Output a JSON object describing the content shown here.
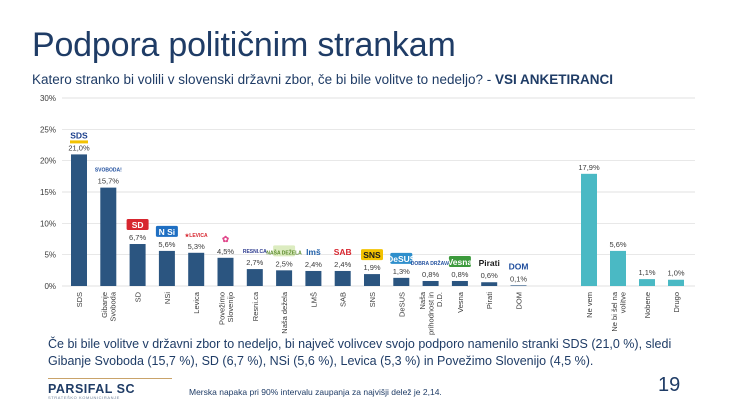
{
  "header": {
    "title": "Podpora političnim strankam",
    "subtitle_main": "Katero stranko bi volili v slovenski državni zbor, če bi bile volitve to nedeljo? - ",
    "subtitle_bold": "VSI ANKETIRANCI"
  },
  "chart_data": {
    "type": "bar",
    "ylim": [
      0,
      30
    ],
    "yticks": [
      0,
      5,
      10,
      15,
      20,
      25,
      30
    ],
    "ytick_labels": [
      "0%",
      "5%",
      "10%",
      "15%",
      "20%",
      "25%",
      "30%"
    ],
    "grid": true,
    "categories": [
      "SDS",
      "Gibanje Svoboda",
      "SD",
      "NSi",
      "Levica",
      "Povežimo Slovenijo",
      "Resni.ca",
      "Naša dežela",
      "LMŠ",
      "SAB",
      "SNS",
      "DeSUS",
      "Naša prihodnost in D.D.",
      "Vesna",
      "Pirati",
      "DOM",
      "Ne vem",
      "Ne bi šel na volitve",
      "Nobene",
      "Drugo"
    ],
    "values": [
      21.0,
      15.7,
      6.7,
      5.6,
      5.3,
      4.5,
      2.7,
      2.5,
      2.4,
      2.4,
      1.9,
      1.3,
      0.8,
      0.8,
      0.6,
      0.1,
      17.9,
      5.6,
      1.1,
      1.0
    ],
    "value_labels": [
      "21,0%",
      "15,7%",
      "6,7%",
      "5,6%",
      "5,3%",
      "4,5%",
      "2,7%",
      "2,5%",
      "2,4%",
      "2,4%",
      "1,9%",
      "1,3%",
      "0,8%",
      "0,8%",
      "0,6%",
      "0,1%",
      "17,9%",
      "5,6%",
      "1,1%",
      "1,0%"
    ],
    "tick_labels": [
      [
        "SDS"
      ],
      [
        "Gibanje",
        "Svoboda"
      ],
      [
        "SD"
      ],
      [
        "NSi"
      ],
      [
        "Levica"
      ],
      [
        "Povežimo",
        "Slovenijo"
      ],
      [
        "Resni.ca"
      ],
      [
        "Naša dežela"
      ],
      [
        "LMŠ"
      ],
      [
        "SAB"
      ],
      [
        "SNS"
      ],
      [
        "DeSUS"
      ],
      [
        "Naša",
        "prihodnost in",
        "D.D."
      ],
      [
        "Vesna"
      ],
      [
        "Pirati"
      ],
      [
        "DOM"
      ],
      [
        "Ne vem"
      ],
      [
        "Ne bi šel na",
        "volitve"
      ],
      [
        "Nobene"
      ],
      [
        "Drugo"
      ]
    ],
    "groups": [
      "party",
      "party",
      "party",
      "party",
      "party",
      "party",
      "party",
      "party",
      "party",
      "party",
      "party",
      "party",
      "party",
      "party",
      "party",
      "party",
      "other",
      "other",
      "other",
      "other"
    ],
    "colors": {
      "party": "#2b5580",
      "other": "#4ab9c4",
      "grid": "#d9d9d9",
      "text": "#3a3a3a"
    },
    "logos": [
      {
        "text": "SDS",
        "color": "#1a3e8c",
        "bg": "",
        "underline": "#f2c200"
      },
      {
        "text": "SVOBODA!",
        "color": "#1f4e9e",
        "bg": "",
        "underline": ""
      },
      {
        "text": "SD",
        "color": "#ffffff",
        "bg": "#d7262f",
        "underline": ""
      },
      {
        "text": "N Si",
        "color": "#ffffff",
        "bg": "#1f6fc2",
        "underline": ""
      },
      {
        "text": "★LEVICA",
        "color": "#d7262f",
        "bg": "",
        "underline": ""
      },
      {
        "text": "✿",
        "color": "#e0468a",
        "bg": "",
        "underline": ""
      },
      {
        "text": "RESNI.CA",
        "color": "#2d3b8f",
        "bg": "",
        "underline": ""
      },
      {
        "text": "NAŠA DEŽELA",
        "color": "#5a8a2a",
        "bg": "#dcecc0",
        "underline": ""
      },
      {
        "text": "lmš",
        "color": "#1f5fa8",
        "bg": "",
        "underline": ""
      },
      {
        "text": "SAB",
        "color": "#d7262f",
        "bg": "",
        "underline": ""
      },
      {
        "text": "SNS",
        "color": "#1a1a1a",
        "bg": "#f2c200",
        "underline": ""
      },
      {
        "text": "DeSUS",
        "color": "#ffffff",
        "bg": "#2e8fcc",
        "underline": ""
      },
      {
        "text": "DOBRA DRŽAVA",
        "color": "#1f4e9e",
        "bg": "",
        "underline": ""
      },
      {
        "text": "Vesna",
        "color": "#ffffff",
        "bg": "#3c9a3c",
        "underline": ""
      },
      {
        "text": "Pirati",
        "color": "#1a1a1a",
        "bg": "",
        "underline": ""
      },
      {
        "text": "DOM",
        "color": "#1f4e9e",
        "bg": "",
        "underline": ""
      },
      null,
      null,
      null,
      null
    ]
  },
  "summary": "Če bi bile volitve v državni zbor to nedeljo, bi največ volivcev svojo podporo namenilo stranki SDS (21,0 %), sledi Gibanje Svoboda (15,7 %), SD (6,7 %), NSi (5,6 %), Levica (5,3 %) in Povežimo Slovenijo (4,5 %).",
  "footer": {
    "logo": "PARSIFAL SC",
    "logo_sub": "STRATEŠKO KOMUNICIRANJE",
    "note": "Merska napaka pri 90% intervalu zaupanja za najvišji delež je 2,14.",
    "page_number": "19"
  }
}
